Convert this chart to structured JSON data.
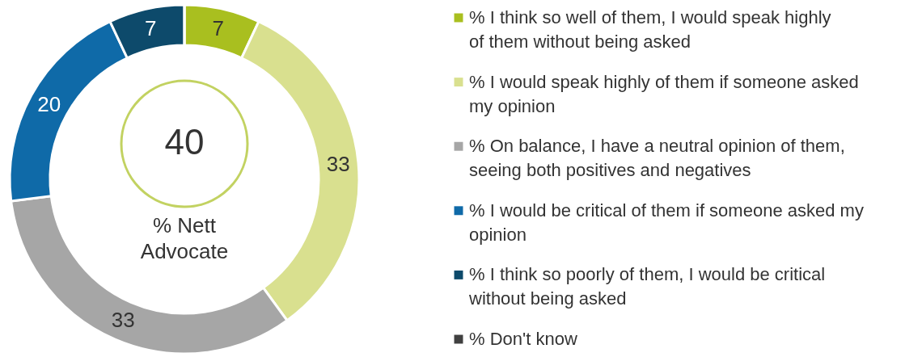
{
  "chart_data": {
    "type": "donut",
    "categories": [
      "% I think so well of them, I would speak highly of them without being asked",
      "% I would speak highly of them if someone asked my opinion",
      "% On balance, I have a neutral opinion of them, seeing both positives and negatives",
      "% I would be critical of them if someone asked my opinion",
      "% I think so poorly of them, I would be critical without being asked",
      "% Don't know"
    ],
    "values": [
      7,
      33,
      33,
      20,
      7,
      0
    ],
    "colors": [
      "#a9bf1f",
      "#d9e08f",
      "#a6a6a6",
      "#0f6aa8",
      "#0d4a6b",
      "#404040"
    ],
    "value_labels": [
      "7",
      "33",
      "33",
      "20",
      "7",
      null
    ],
    "annotations": [
      "40",
      "% Nett Advocate"
    ],
    "legend": "right"
  }
}
